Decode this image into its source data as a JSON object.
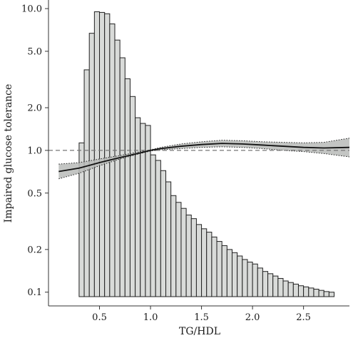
{
  "chart_data": {
    "type": "bar",
    "title": "",
    "xlabel": "TG/HDL",
    "ylabel": "Impaired glucose tolerance",
    "ylog": true,
    "xlim": [
      0.0,
      2.95
    ],
    "ylim": [
      0.08,
      11.5
    ],
    "xticks": [
      0.5,
      1.0,
      1.5,
      2.0,
      2.5
    ],
    "xtick_labels": [
      "0.5",
      "1.0",
      "1.5",
      "2.0",
      "2.5"
    ],
    "yticks": [
      0.1,
      0.2,
      0.5,
      1.0,
      2.0,
      5.0,
      10.0
    ],
    "ytick_labels": [
      "0.1",
      "0.2",
      "0.5",
      "1.0",
      "2.0",
      "5.0",
      "10.0"
    ],
    "grid": false,
    "reference_line": {
      "y": 1.0,
      "style": "dashed",
      "color": "#777777"
    },
    "histogram": {
      "bin_start": 0.3,
      "bin_width": 0.05,
      "base": 0.093,
      "values": [
        1.13,
        3.7,
        6.7,
        9.5,
        9.4,
        9.2,
        7.8,
        6.0,
        4.5,
        3.2,
        2.4,
        1.7,
        1.55,
        1.5,
        0.93,
        0.85,
        0.72,
        0.6,
        0.48,
        0.43,
        0.39,
        0.35,
        0.33,
        0.3,
        0.28,
        0.265,
        0.245,
        0.228,
        0.213,
        0.2,
        0.19,
        0.18,
        0.17,
        0.163,
        0.158,
        0.148,
        0.14,
        0.135,
        0.13,
        0.125,
        0.12,
        0.117,
        0.114,
        0.111,
        0.109,
        0.107,
        0.105,
        0.103,
        0.101,
        0.1
      ],
      "fill": "#d9dbd9",
      "stroke": "#222222"
    },
    "series": [
      {
        "type": "line",
        "x": [
          0.1,
          0.3,
          0.5,
          0.7,
          0.9,
          1.0,
          1.1,
          1.3,
          1.5,
          1.7,
          1.9,
          2.1,
          2.3,
          2.5,
          2.7,
          2.95
        ],
        "y": [
          0.71,
          0.75,
          0.82,
          0.89,
          0.96,
          1.0,
          1.03,
          1.07,
          1.1,
          1.12,
          1.11,
          1.09,
          1.07,
          1.05,
          1.04,
          1.05
        ],
        "lower": [
          0.63,
          0.69,
          0.78,
          0.87,
          0.95,
          0.99,
          1.01,
          1.03,
          1.05,
          1.06,
          1.05,
          1.03,
          1.0,
          0.98,
          0.95,
          0.9
        ],
        "upper": [
          0.8,
          0.82,
          0.87,
          0.92,
          0.98,
          1.01,
          1.05,
          1.11,
          1.15,
          1.18,
          1.17,
          1.15,
          1.14,
          1.13,
          1.14,
          1.22
        ],
        "color": "#111111",
        "band_color": "#b9bbb9"
      }
    ]
  }
}
